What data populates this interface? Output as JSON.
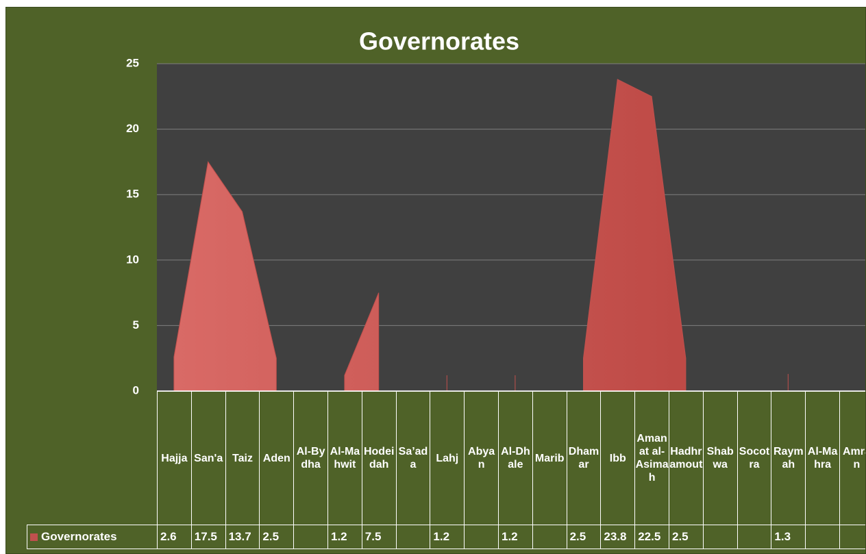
{
  "chart_data": {
    "type": "area",
    "title": "Governorates",
    "categories": [
      "Hajja",
      "San'a",
      "Taiz",
      "Aden",
      "Al-Bydha",
      "Al-Mahwit",
      "Hodeidah",
      "Sa’ada",
      "Lahj",
      "Abyan",
      "Al-Dhale",
      "Marib",
      "Dhamar",
      "Ibb",
      "Amanat al-Asimah",
      "Hadhramout",
      "Shabwa",
      "Socotra",
      "Raymah",
      "Al-Mahra",
      "Amran"
    ],
    "series": [
      {
        "name": "Governorates",
        "color": "#c0504d",
        "values": [
          2.6,
          17.5,
          13.7,
          2.5,
          null,
          1.2,
          7.5,
          null,
          1.2,
          null,
          1.2,
          null,
          2.5,
          23.8,
          22.5,
          2.5,
          null,
          null,
          1.3,
          null,
          null
        ]
      }
    ],
    "ylim": [
      0,
      25
    ],
    "yticks": [
      0,
      5,
      10,
      15,
      20,
      25
    ],
    "grid": true,
    "data_table": true
  }
}
